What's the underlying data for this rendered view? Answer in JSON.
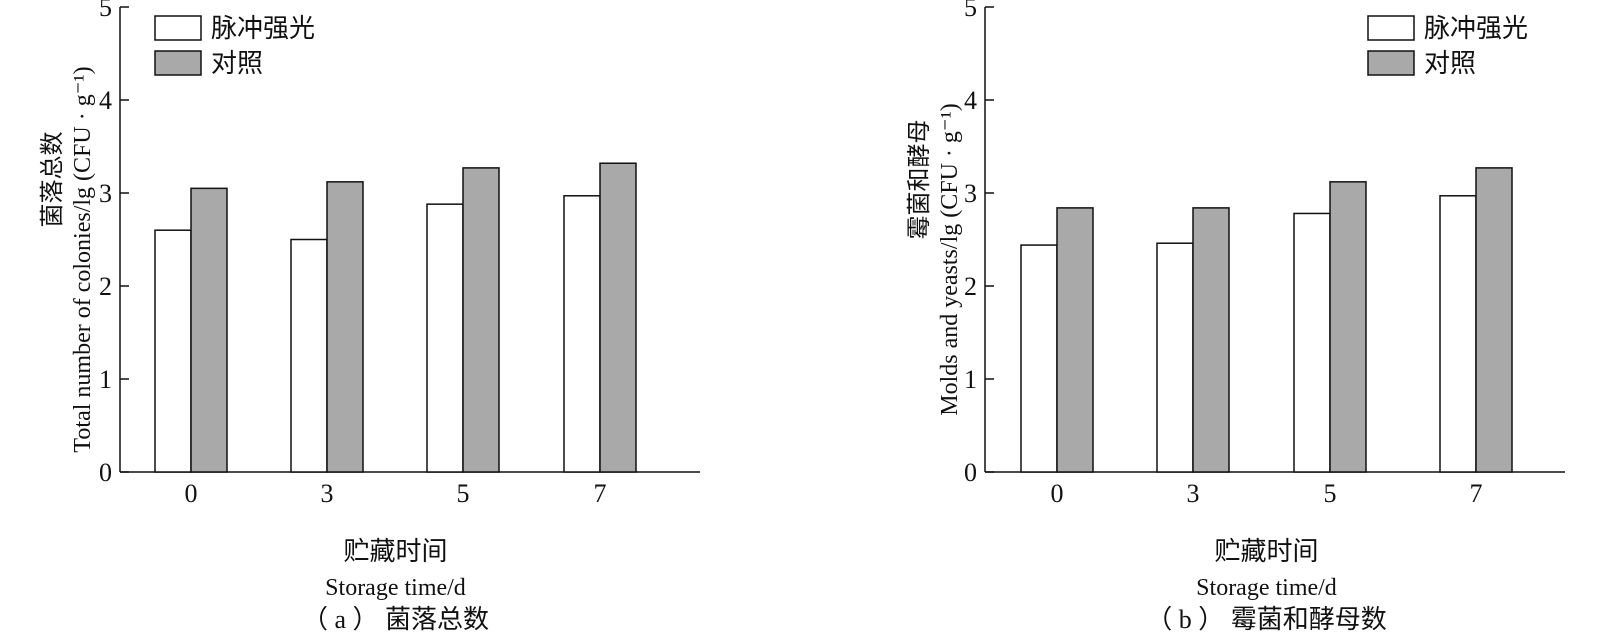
{
  "colors": {
    "treatment": "#ffffff",
    "control": "#a9a9aa",
    "stroke": "#111111"
  },
  "chart_data": [
    {
      "type": "bar",
      "caption": "（ a ） 菌落总数",
      "xlabel_cn": "贮藏时间",
      "xlabel": "Storage time/d",
      "ylabel_cn": "菌落总数",
      "ylabel": "Total number of colonies/lg (CFU · g⁻¹)",
      "categories": [
        "0",
        "3",
        "5",
        "7"
      ],
      "yticks": [
        "0",
        "1",
        "2",
        "3",
        "4",
        "5"
      ],
      "ylim": [
        0,
        5
      ],
      "legend_position": "top-left",
      "series": [
        {
          "name": "脉冲强光",
          "values": [
            2.6,
            2.5,
            2.88,
            2.97
          ]
        },
        {
          "name": "对照",
          "values": [
            3.05,
            3.12,
            3.27,
            3.32
          ]
        }
      ]
    },
    {
      "type": "bar",
      "caption": "（ b ） 霉菌和酵母数",
      "xlabel_cn": "贮藏时间",
      "xlabel": "Storage time/d",
      "ylabel_cn": "霉菌和酵母",
      "ylabel": "Molds and yeasts/lg (CFU · g⁻¹)",
      "categories": [
        "0",
        "3",
        "5",
        "7"
      ],
      "yticks": [
        "0",
        "1",
        "2",
        "3",
        "4",
        "5"
      ],
      "ylim": [
        0,
        5
      ],
      "legend_position": "top-right",
      "series": [
        {
          "name": "脉冲强光",
          "values": [
            2.44,
            2.46,
            2.78,
            2.97
          ]
        },
        {
          "name": "对照",
          "values": [
            2.84,
            2.84,
            3.12,
            3.27
          ]
        }
      ]
    }
  ]
}
